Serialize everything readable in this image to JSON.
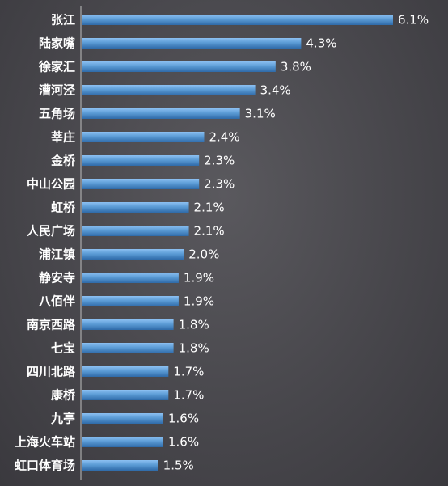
{
  "chart_data": {
    "type": "bar",
    "orientation": "horizontal",
    "title": "",
    "xlabel": "",
    "ylabel": "",
    "categories": [
      "张江",
      "陆家嘴",
      "徐家汇",
      "漕河泾",
      "五角场",
      "莘庄",
      "金桥",
      "中山公园",
      "虹桥",
      "人民广场",
      "浦江镇",
      "静安寺",
      "八佰伴",
      "南京西路",
      "七宝",
      "四川北路",
      "康桥",
      "九亭",
      "上海火车站",
      "虹口体育场"
    ],
    "values": [
      6.1,
      4.3,
      3.8,
      3.4,
      3.1,
      2.4,
      2.3,
      2.3,
      2.1,
      2.1,
      2.0,
      1.9,
      1.9,
      1.8,
      1.8,
      1.7,
      1.7,
      1.6,
      1.6,
      1.5
    ],
    "value_labels": [
      "6.1%",
      "4.3%",
      "3.8%",
      "3.4%",
      "3.1%",
      "2.4%",
      "2.3%",
      "2.3%",
      "2.1%",
      "2.1%",
      "2.0%",
      "1.9%",
      "1.9%",
      "1.8%",
      "1.8%",
      "1.7%",
      "1.7%",
      "1.6%",
      "1.6%",
      "1.5%"
    ],
    "xlim": [
      0,
      6.1
    ],
    "grid": false,
    "legend": "none",
    "colors": {
      "bar_top": "#8cc0f2",
      "bar_mid": "#5b9bd5",
      "bar_bottom": "#2f6aa8",
      "axis": "#bfbfbf",
      "text": "#ffffff"
    }
  }
}
